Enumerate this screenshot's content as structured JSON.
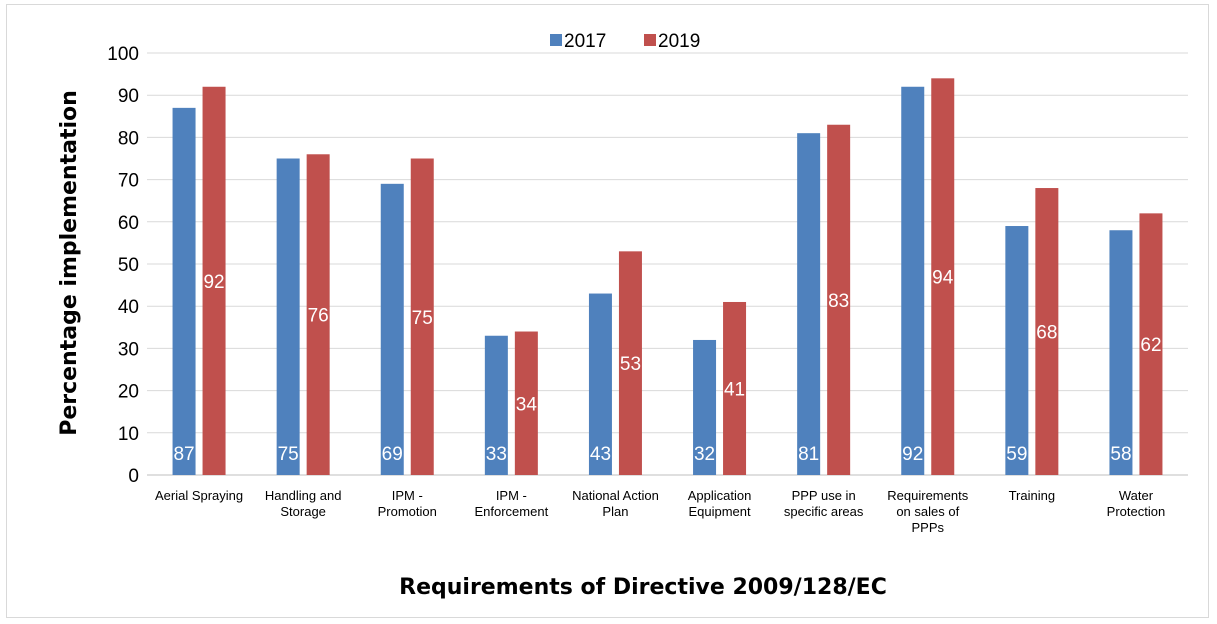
{
  "chart_data": {
    "type": "bar",
    "title": "",
    "xlabel": "Requirements of Directive 2009/128/EC",
    "ylabel": "Percentage implementation",
    "ylim": [
      0,
      100
    ],
    "yticks": [
      0,
      10,
      20,
      30,
      40,
      50,
      60,
      70,
      80,
      90,
      100
    ],
    "grid": true,
    "legend_position": "top-center",
    "categories": [
      [
        "Aerial Spraying"
      ],
      [
        "Handling and",
        "Storage"
      ],
      [
        "IPM -",
        "Promotion"
      ],
      [
        "IPM -",
        "Enforcement"
      ],
      [
        "National Action",
        "Plan"
      ],
      [
        "Application",
        "Equipment"
      ],
      [
        "PPP use in",
        "specific areas"
      ],
      [
        "Requirements",
        "on sales of",
        "PPPs"
      ],
      [
        "Training"
      ],
      [
        "Water",
        "Protection"
      ]
    ],
    "series": [
      {
        "name": "2017",
        "color": "#4F81BD",
        "values": [
          87,
          75,
          69,
          33,
          43,
          32,
          81,
          92,
          59,
          58
        ],
        "labels": [
          "87",
          "75",
          "69",
          "33",
          "43",
          "32",
          "81",
          "92",
          "59",
          "58"
        ]
      },
      {
        "name": "2019",
        "color": "#C0504D",
        "values": [
          92,
          76,
          75,
          34,
          53,
          41,
          83,
          94,
          68,
          62
        ],
        "labels": [
          "92",
          "76",
          "75",
          "34",
          "53",
          "41",
          "83",
          "94",
          "68",
          "62"
        ]
      }
    ]
  }
}
